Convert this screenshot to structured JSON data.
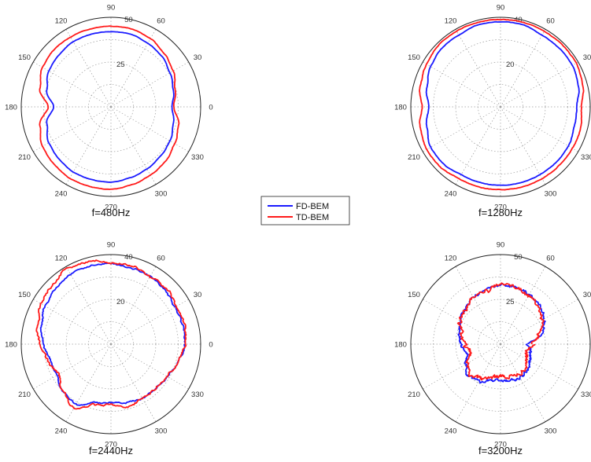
{
  "chart_data": {
    "type": "polar-line",
    "legend": {
      "placement": "center",
      "entries": [
        {
          "name": "FD-BEM",
          "color": "#1a1aff"
        },
        {
          "name": "TD-BEM",
          "color": "#ff1a1a"
        }
      ]
    },
    "angle_ticks": [
      "0",
      "30",
      "60",
      "90",
      "120",
      "150",
      "180",
      "210",
      "240",
      "270",
      "300",
      "330"
    ],
    "grid": true,
    "panels": [
      {
        "caption": "f=480Hz",
        "r_max": 50,
        "r_ticks": [
          "25",
          "50"
        ],
        "series": [
          {
            "name": "FD-BEM",
            "color": "#1a1aff",
            "theta": [
              0,
              15,
              30,
              45,
              60,
              75,
              90,
              105,
              120,
              135,
              150,
              165,
              180,
              195,
              210,
              225,
              240,
              255,
              270,
              285,
              300,
              315,
              330,
              345,
              360
            ],
            "r": [
              34,
              36,
              38,
              40,
              41,
              42,
              42,
              42,
              42,
              41,
              40,
              37,
              32,
              37,
              40,
              41,
              42,
              42,
              42,
              41,
              40,
              39,
              38,
              36,
              34
            ]
          },
          {
            "name": "TD-BEM",
            "color": "#ff1a1a",
            "theta": [
              0,
              15,
              30,
              45,
              60,
              75,
              90,
              105,
              120,
              135,
              150,
              165,
              180,
              195,
              210,
              225,
              240,
              255,
              270,
              285,
              300,
              315,
              330,
              345,
              360
            ],
            "r": [
              35,
              37,
              40,
              42,
              44,
              45,
              45,
              45,
              45,
              45,
              44,
              41,
              35,
              41,
              44,
              45,
              46,
              46,
              46,
              45,
              44,
              43,
              41,
              39,
              35
            ]
          }
        ]
      },
      {
        "caption": "f=1280Hz",
        "r_max": 40,
        "r_ticks": [
          "20",
          "40"
        ],
        "series": [
          {
            "name": "FD-BEM",
            "color": "#1a1aff",
            "theta": [
              0,
              15,
              30,
              45,
              60,
              75,
              90,
              105,
              120,
              135,
              150,
              165,
              180,
              195,
              210,
              225,
              240,
              255,
              270,
              285,
              300,
              315,
              330,
              345,
              360
            ],
            "r": [
              34,
              36,
              37,
              37,
              37,
              38,
              38,
              38,
              37,
              37,
              36,
              34,
              32,
              34,
              36,
              36,
              35,
              35,
              35,
              35,
              35,
              35,
              35,
              34,
              34
            ]
          },
          {
            "name": "TD-BEM",
            "color": "#ff1a1a",
            "theta": [
              0,
              15,
              30,
              45,
              60,
              75,
              90,
              105,
              120,
              135,
              150,
              165,
              180,
              195,
              210,
              225,
              240,
              255,
              270,
              285,
              300,
              315,
              330,
              345,
              360
            ],
            "r": [
              36,
              38,
              39,
              39,
              39,
              39,
              39,
              39,
              39,
              39,
              38,
              37,
              35,
              37,
              38,
              38,
              37,
              37,
              37,
              37,
              37,
              37,
              37,
              37,
              36
            ]
          }
        ]
      },
      {
        "caption": "f=2440Hz",
        "r_max": 40,
        "r_ticks": [
          "20",
          "40"
        ],
        "series": [
          {
            "name": "FD-BEM",
            "color": "#1a1aff",
            "theta": [
              0,
              15,
              30,
              45,
              60,
              75,
              90,
              105,
              120,
              135,
              150,
              165,
              180,
              195,
              210,
              225,
              240,
              255,
              270,
              285,
              300,
              315,
              330,
              345,
              360
            ],
            "r": [
              33,
              33,
              33,
              34,
              35,
              35,
              36,
              36,
              36,
              35,
              34,
              32,
              30,
              28,
              28,
              30,
              31,
              27,
              26,
              27,
              28,
              28,
              29,
              31,
              33
            ]
          },
          {
            "name": "TD-BEM",
            "color": "#ff1a1a",
            "theta": [
              0,
              15,
              30,
              45,
              60,
              75,
              90,
              105,
              120,
              135,
              150,
              165,
              180,
              195,
              210,
              225,
              240,
              255,
              270,
              285,
              300,
              315,
              330,
              345,
              360
            ],
            "r": [
              33,
              34,
              34,
              35,
              35,
              36,
              36,
              38,
              39,
              37,
              36,
              34,
              32,
              29,
              27,
              30,
              33,
              28,
              27,
              29,
              28,
              28,
              29,
              31,
              33
            ]
          }
        ]
      },
      {
        "caption": "f=3200Hz",
        "r_max": 50,
        "r_ticks": [
          "25",
          "50"
        ],
        "series": [
          {
            "name": "FD-BEM",
            "color": "#1a1aff",
            "theta": [
              0,
              15,
              30,
              45,
              60,
              75,
              90,
              105,
              120,
              135,
              150,
              165,
              180,
              195,
              210,
              225,
              240,
              255,
              270,
              285,
              300,
              315,
              330,
              345,
              360
            ],
            "r": [
              15,
              24,
              28,
              31,
              32,
              33,
              33,
              32,
              30,
              28,
              26,
              24,
              22,
              19,
              22,
              25,
              24,
              21,
              20,
              21,
              22,
              21,
              19,
              17,
              15
            ]
          },
          {
            "name": "TD-BEM",
            "color": "#ff1a1a",
            "theta": [
              0,
              15,
              30,
              45,
              60,
              75,
              90,
              105,
              120,
              135,
              150,
              165,
              180,
              195,
              210,
              225,
              240,
              255,
              270,
              285,
              300,
              315,
              330,
              345,
              360
            ],
            "r": [
              18,
              22,
              27,
              30,
              31,
              33,
              34,
              31,
              30,
              27,
              26,
              23,
              20,
              17,
              21,
              24,
              22,
              19,
              18,
              19,
              20,
              19,
              17,
              15,
              18
            ]
          }
        ]
      }
    ]
  }
}
